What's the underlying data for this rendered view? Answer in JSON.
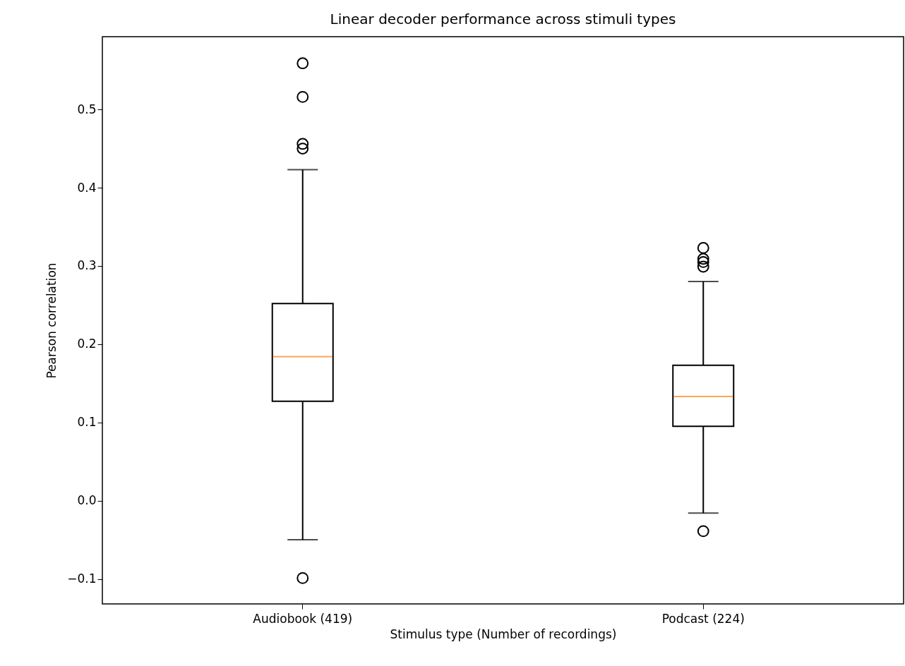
{
  "chart_data": {
    "type": "box",
    "title": "Linear decoder performance across stimuli types",
    "xlabel": "Stimulus type (Number of recordings)",
    "ylabel": "Pearson correlation",
    "categories": [
      "Audiobook (419)",
      "Podcast (224)"
    ],
    "boxes": [
      {
        "low": -0.05,
        "q1": 0.127,
        "median": 0.184,
        "q3": 0.252,
        "high": 0.423,
        "outliers": [
          0.559,
          0.516,
          0.456,
          0.45,
          -0.099
        ]
      },
      {
        "low": -0.016,
        "q1": 0.095,
        "median": 0.133,
        "q3": 0.173,
        "high": 0.28,
        "outliers": [
          0.323,
          0.309,
          0.305,
          0.299,
          -0.039
        ]
      }
    ],
    "ylim": [
      -0.132,
      0.593
    ],
    "yticks": [
      {
        "value": -0.1,
        "label": "−0.1"
      },
      {
        "value": 0,
        "label": "0.0"
      },
      {
        "value": 0.1,
        "label": "0.1"
      },
      {
        "value": 0.2,
        "label": "0.2"
      },
      {
        "value": 0.3,
        "label": "0.3"
      },
      {
        "value": 0.4,
        "label": "0.4"
      },
      {
        "value": 0.5,
        "label": "0.5"
      }
    ],
    "grid": false
  }
}
